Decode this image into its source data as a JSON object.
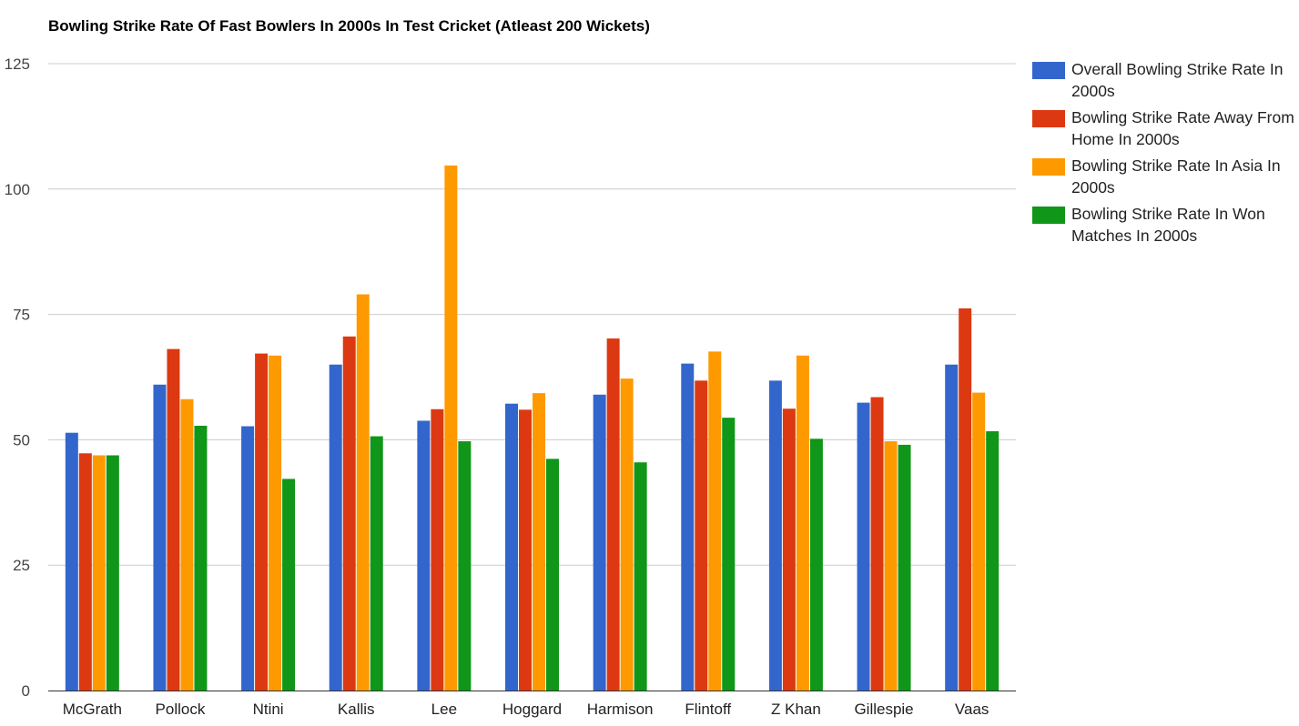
{
  "title": "Bowling Strike Rate Of Fast Bowlers In 2000s In Test Cricket (Atleast 200 Wickets)",
  "chart_data": {
    "type": "bar",
    "title": "Bowling Strike Rate Of Fast Bowlers In 2000s In Test Cricket (Atleast 200 Wickets)",
    "xlabel": "",
    "ylabel": "",
    "ylim": [
      0,
      125
    ],
    "yticks": [
      0,
      25,
      50,
      75,
      100,
      125
    ],
    "grid": true,
    "legend_position": "right",
    "categories": [
      "McGrath",
      "Pollock",
      "Ntini",
      "Kallis",
      "Lee",
      "Hoggard",
      "Harmison",
      "Flintoff",
      "Z Khan",
      "Gillespie",
      "Vaas"
    ],
    "series": [
      {
        "name": "Overall Bowling Strike Rate In 2000s",
        "color": "#3366cc",
        "values": [
          51.4,
          61,
          52.7,
          65,
          53.8,
          57.2,
          59,
          65.2,
          61.8,
          57.4,
          65
        ]
      },
      {
        "name": "Bowling Strike Rate Away From Home In 2000s",
        "color": "#dc3912",
        "values": [
          47.3,
          68.1,
          67.2,
          70.6,
          56.1,
          56,
          70.2,
          61.8,
          56.2,
          58.5,
          76.2
        ]
      },
      {
        "name": "Bowling Strike Rate In Asia In 2000s",
        "color": "#ff9900",
        "values": [
          46.9,
          58.1,
          66.8,
          79,
          104.7,
          59.3,
          62.2,
          67.6,
          66.8,
          49.7,
          59.4
        ]
      },
      {
        "name": "Bowling Strike Rate In Won Matches In 2000s",
        "color": "#109618",
        "values": [
          46.9,
          52.8,
          42.2,
          50.7,
          49.7,
          46.2,
          45.5,
          54.4,
          50.2,
          49,
          51.7
        ]
      }
    ]
  }
}
